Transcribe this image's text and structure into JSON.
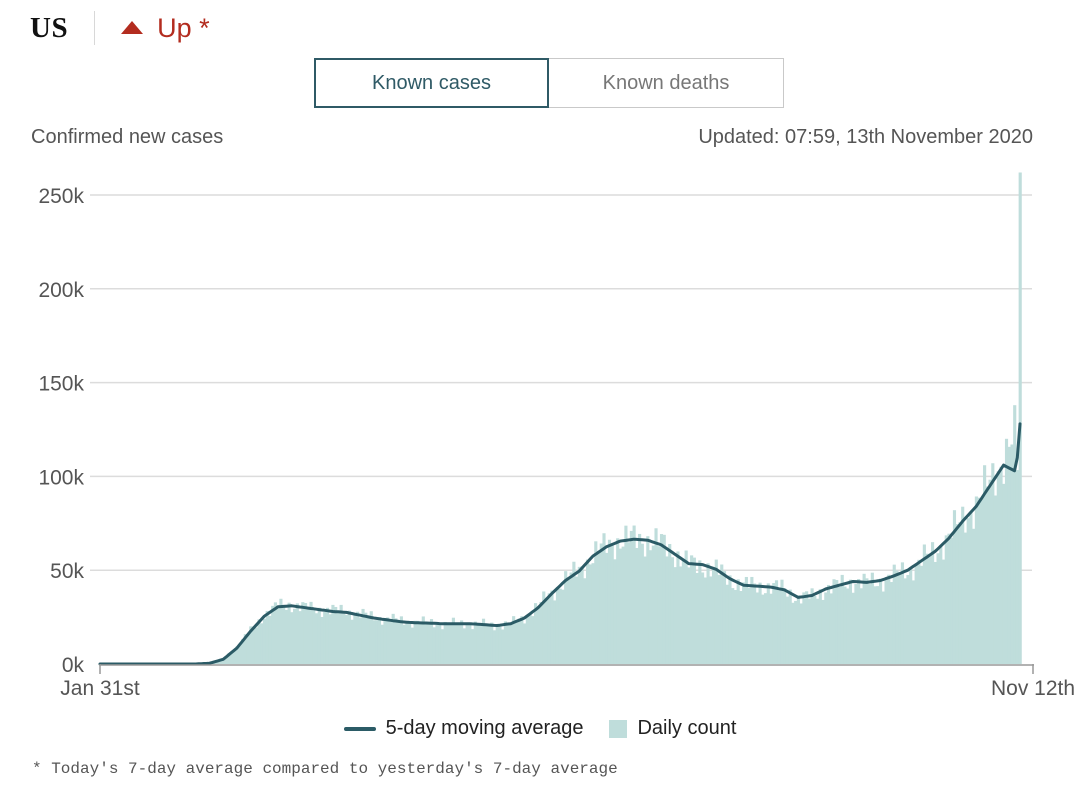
{
  "header": {
    "country": "US",
    "trend_label": "Up *",
    "trend_icon": "triangle-up-icon",
    "trend_color": "#b32c1f"
  },
  "tabs": [
    {
      "label": "Known cases",
      "active": true
    },
    {
      "label": "Known deaths",
      "active": false
    }
  ],
  "subtitle_left": "Confirmed new cases",
  "updated": "Updated: 07:59, 13th November 2020",
  "legend": {
    "line_label": "5-day moving average",
    "bar_label": "Daily count"
  },
  "footnote": "* Today's 7-day average compared to yesterday's 7-day average",
  "colors": {
    "line": "#2b5b66",
    "bar": "#bfdddb",
    "active_tab": "#2f5a66"
  },
  "chart_data": {
    "type": "bar",
    "start_date": "Jan 31st",
    "end_date": "Nov 12th",
    "x_tick_labels": [
      "Jan 31st",
      "Nov 12th"
    ],
    "y_ticks": [
      0,
      50000,
      100000,
      150000,
      200000,
      250000
    ],
    "y_tick_labels": [
      "0k",
      "50k",
      "100k",
      "150k",
      "200k",
      "250k"
    ],
    "ylim": [
      0,
      250000
    ],
    "grid": true,
    "legend_position": "bottom",
    "series": [
      {
        "name": "Daily count",
        "type": "bar",
        "anchors": [
          [
            0,
            0
          ],
          [
            35,
            0
          ],
          [
            40,
            500
          ],
          [
            45,
            3000
          ],
          [
            50,
            9000
          ],
          [
            55,
            18000
          ],
          [
            60,
            26000
          ],
          [
            65,
            31000
          ],
          [
            70,
            31500
          ],
          [
            75,
            30000
          ],
          [
            80,
            29000
          ],
          [
            85,
            28500
          ],
          [
            90,
            28000
          ],
          [
            95,
            26500
          ],
          [
            100,
            25000
          ],
          [
            105,
            24000
          ],
          [
            110,
            23000
          ],
          [
            115,
            22500
          ],
          [
            120,
            22000
          ],
          [
            125,
            21500
          ],
          [
            130,
            21500
          ],
          [
            135,
            21500
          ],
          [
            140,
            21000
          ],
          [
            145,
            20500
          ],
          [
            150,
            21500
          ],
          [
            155,
            25000
          ],
          [
            160,
            31000
          ],
          [
            165,
            38000
          ],
          [
            170,
            45000
          ],
          [
            175,
            50000
          ],
          [
            180,
            58000
          ],
          [
            185,
            63000
          ],
          [
            190,
            66000
          ],
          [
            195,
            66500
          ],
          [
            200,
            66000
          ],
          [
            205,
            64000
          ],
          [
            210,
            59000
          ],
          [
            215,
            53000
          ],
          [
            220,
            52500
          ],
          [
            225,
            50000
          ],
          [
            230,
            45000
          ],
          [
            235,
            42000
          ],
          [
            240,
            41500
          ],
          [
            245,
            41000
          ],
          [
            250,
            40000
          ],
          [
            255,
            35000
          ],
          [
            260,
            36000
          ],
          [
            265,
            40000
          ],
          [
            270,
            42000
          ],
          [
            275,
            44000
          ],
          [
            280,
            43000
          ],
          [
            285,
            44500
          ],
          [
            290,
            47000
          ],
          [
            295,
            50000
          ],
          [
            300,
            55000
          ],
          [
            305,
            60000
          ],
          [
            310,
            68000
          ],
          [
            315,
            77000
          ],
          [
            320,
            85000
          ],
          [
            325,
            97000
          ],
          [
            330,
            110000
          ],
          [
            334,
            120000
          ],
          [
            335,
            105000
          ],
          [
            336,
            262000
          ]
        ]
      },
      {
        "name": "5-day moving average",
        "type": "line",
        "anchors": [
          [
            0,
            0
          ],
          [
            35,
            0
          ],
          [
            40,
            400
          ],
          [
            45,
            2500
          ],
          [
            50,
            8500
          ],
          [
            55,
            17500
          ],
          [
            60,
            25500
          ],
          [
            65,
            30500
          ],
          [
            70,
            31000
          ],
          [
            75,
            30000
          ],
          [
            80,
            29000
          ],
          [
            85,
            28000
          ],
          [
            90,
            27500
          ],
          [
            95,
            26000
          ],
          [
            100,
            24500
          ],
          [
            105,
            23500
          ],
          [
            110,
            22500
          ],
          [
            115,
            22000
          ],
          [
            120,
            21800
          ],
          [
            125,
            21500
          ],
          [
            130,
            21500
          ],
          [
            135,
            21500
          ],
          [
            140,
            21000
          ],
          [
            145,
            20500
          ],
          [
            150,
            21500
          ],
          [
            155,
            24500
          ],
          [
            160,
            30000
          ],
          [
            165,
            37500
          ],
          [
            170,
            44500
          ],
          [
            175,
            49500
          ],
          [
            180,
            57500
          ],
          [
            185,
            62500
          ],
          [
            190,
            65500
          ],
          [
            195,
            66500
          ],
          [
            200,
            66000
          ],
          [
            205,
            63500
          ],
          [
            210,
            58500
          ],
          [
            215,
            53500
          ],
          [
            220,
            53000
          ],
          [
            225,
            50500
          ],
          [
            230,
            45500
          ],
          [
            235,
            42000
          ],
          [
            240,
            41500
          ],
          [
            245,
            41000
          ],
          [
            250,
            39500
          ],
          [
            255,
            35500
          ],
          [
            260,
            36500
          ],
          [
            265,
            40000
          ],
          [
            270,
            42000
          ],
          [
            275,
            44000
          ],
          [
            280,
            43500
          ],
          [
            285,
            44500
          ],
          [
            290,
            47000
          ],
          [
            295,
            50000
          ],
          [
            300,
            55000
          ],
          [
            305,
            60000
          ],
          [
            310,
            67000
          ],
          [
            315,
            76000
          ],
          [
            320,
            84000
          ],
          [
            325,
            95000
          ],
          [
            330,
            106000
          ],
          [
            334,
            103000
          ],
          [
            335,
            110000
          ],
          [
            336,
            128000
          ]
        ]
      }
    ]
  }
}
